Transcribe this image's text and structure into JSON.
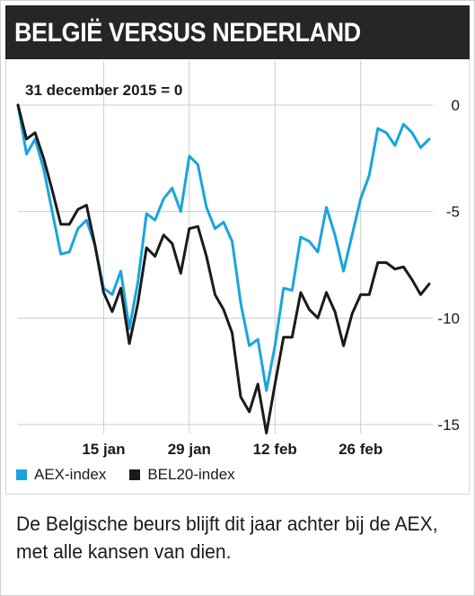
{
  "title": "BELGIË VERSUS NEDERLAND",
  "caption": "De Belgische beurs blijft dit jaar achter bij de AEX, met alle kansen van dien.",
  "colors": {
    "aex": "#1aa4dc",
    "bel20": "#1a1a1a",
    "title_bg": "#262626",
    "grid": "#cccccc"
  },
  "chart_data": {
    "type": "line",
    "annotation": "31 december 2015 = 0",
    "x_tick_labels": [
      "15 jan",
      "29 jan",
      "12 feb",
      "26 feb"
    ],
    "x_tick_positions": [
      10,
      20,
      30,
      40
    ],
    "xlim": [
      0,
      48
    ],
    "ylim": [
      -15,
      0
    ],
    "y_ticks": [
      0,
      -5,
      -10,
      -15
    ],
    "y_tick_labels": [
      "0",
      "-5",
      "-10",
      "-15"
    ],
    "grid": true,
    "legend_position": "bottom-left",
    "series": [
      {
        "name": "AEX-index",
        "values": [
          0,
          -2.3,
          -1.6,
          -3.0,
          -5.0,
          -7.0,
          -6.9,
          -5.8,
          -5.4,
          -6.6,
          -8.6,
          -8.9,
          -7.8,
          -10.5,
          -8.3,
          -5.1,
          -5.4,
          -4.4,
          -3.9,
          -5.0,
          -2.4,
          -2.8,
          -4.8,
          -5.8,
          -5.5,
          -6.4,
          -9.3,
          -11.3,
          -11.0,
          -13.4,
          -11.3,
          -8.6,
          -8.7,
          -6.2,
          -6.4,
          -6.9,
          -4.8,
          -6.1,
          -7.8,
          -6.1,
          -4.4,
          -3.3,
          -1.1,
          -1.3,
          -1.9,
          -0.9,
          -1.3,
          -2.0,
          -1.6
        ]
      },
      {
        "name": "BEL20-index",
        "values": [
          0,
          -1.6,
          -1.3,
          -2.5,
          -4.0,
          -5.6,
          -5.6,
          -4.9,
          -4.7,
          -6.6,
          -8.8,
          -9.7,
          -8.6,
          -11.2,
          -9.3,
          -6.7,
          -7.1,
          -6.1,
          -6.5,
          -7.9,
          -5.8,
          -5.7,
          -7.1,
          -8.9,
          -9.6,
          -10.7,
          -13.7,
          -14.4,
          -13.1,
          -15.4,
          -13.1,
          -10.9,
          -10.9,
          -8.8,
          -9.6,
          -10.0,
          -8.8,
          -9.7,
          -11.3,
          -9.8,
          -8.9,
          -8.9,
          -7.4,
          -7.4,
          -7.7,
          -7.6,
          -8.2,
          -8.9,
          -8.4
        ]
      }
    ]
  }
}
